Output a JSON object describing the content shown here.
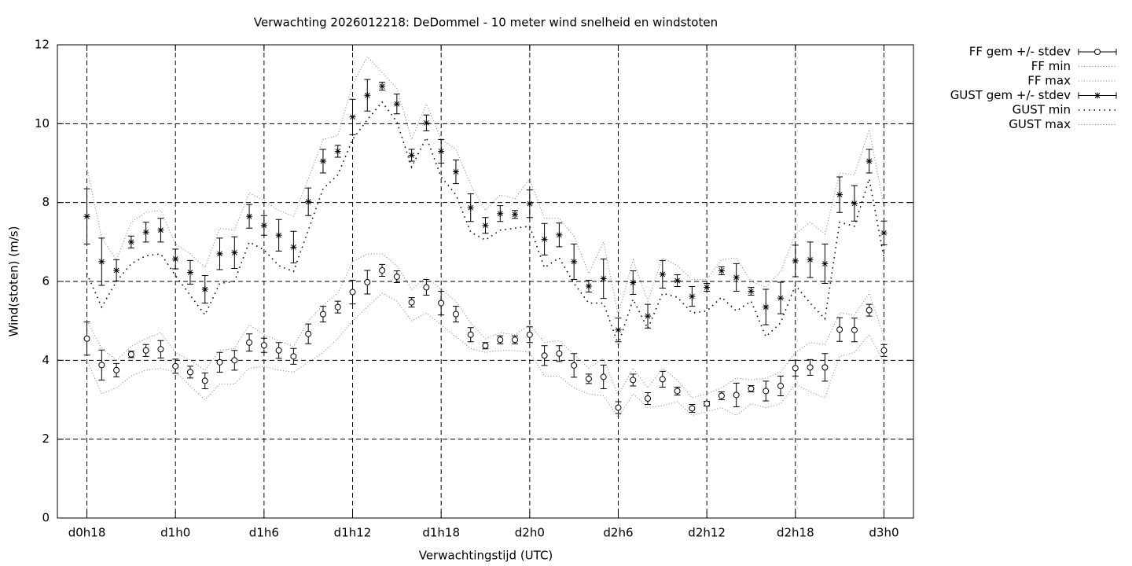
{
  "chart_data": {
    "type": "line",
    "title": "Verwachting 2026012218: DeDommel - 10 meter wind snelheid en windstoten",
    "xlabel": "Verwachtingstijd (UTC)",
    "ylabel": "Wind(stoten) (m/s)",
    "x": [
      18,
      19,
      20,
      21,
      22,
      23,
      24,
      25,
      26,
      27,
      28,
      29,
      30,
      31,
      32,
      33,
      34,
      35,
      36,
      37,
      38,
      39,
      40,
      41,
      42,
      43,
      44,
      45,
      46,
      47,
      48,
      49,
      50,
      51,
      52,
      53,
      54,
      55,
      56,
      57,
      58,
      59,
      60,
      61,
      62,
      63,
      64,
      65,
      66,
      67,
      68,
      69,
      70,
      71,
      72
    ],
    "xlim": [
      16,
      74
    ],
    "xticks": [
      {
        "value": 18,
        "label": "d0h18"
      },
      {
        "value": 24,
        "label": "d1h0"
      },
      {
        "value": 30,
        "label": "d1h6"
      },
      {
        "value": 36,
        "label": "d1h12"
      },
      {
        "value": 42,
        "label": "d1h18"
      },
      {
        "value": 48,
        "label": "d2h0"
      },
      {
        "value": 54,
        "label": "d2h6"
      },
      {
        "value": 60,
        "label": "d2h12"
      },
      {
        "value": 66,
        "label": "d2h18"
      },
      {
        "value": 72,
        "label": "d3h0"
      }
    ],
    "ylim": [
      0,
      12
    ],
    "yticks": [
      0,
      2,
      4,
      6,
      8,
      10,
      12
    ],
    "grid": true,
    "legend": "outside-top-right",
    "series": [
      {
        "name": "FF gem +/- stdev",
        "color": "#000000",
        "marker": "circle",
        "style": "errorbar",
        "values": [
          4.55,
          3.88,
          3.75,
          4.15,
          4.25,
          4.28,
          3.85,
          3.7,
          3.48,
          3.95,
          4.0,
          4.45,
          4.38,
          4.25,
          4.1,
          4.67,
          5.17,
          5.35,
          5.73,
          5.98,
          6.28,
          6.12,
          5.47,
          5.85,
          5.45,
          5.17,
          4.65,
          4.37,
          4.52,
          4.52,
          4.65,
          4.12,
          4.17,
          3.87,
          3.53,
          3.58,
          2.8,
          3.5,
          3.03,
          3.52,
          3.22,
          2.78,
          2.9,
          3.1,
          3.12,
          3.28,
          3.22,
          3.35,
          3.8,
          3.82,
          3.82,
          4.78,
          4.77,
          5.27,
          4.25
        ],
        "errors": [
          0.42,
          0.38,
          0.17,
          0.08,
          0.15,
          0.22,
          0.18,
          0.15,
          0.2,
          0.25,
          0.25,
          0.22,
          0.18,
          0.2,
          0.2,
          0.25,
          0.2,
          0.15,
          0.3,
          0.3,
          0.15,
          0.15,
          0.12,
          0.2,
          0.3,
          0.2,
          0.18,
          0.08,
          0.1,
          0.1,
          0.2,
          0.25,
          0.2,
          0.3,
          0.12,
          0.3,
          0.15,
          0.15,
          0.15,
          0.2,
          0.1,
          0.1,
          0.06,
          0.1,
          0.3,
          0.08,
          0.25,
          0.25,
          0.2,
          0.2,
          0.35,
          0.3,
          0.3,
          0.15,
          0.15
        ]
      },
      {
        "name": "FF min",
        "color": "#808080",
        "style": "dotted",
        "values": [
          4.0,
          3.15,
          3.3,
          3.6,
          3.75,
          3.8,
          3.7,
          3.35,
          3.0,
          3.4,
          3.4,
          3.8,
          3.85,
          3.75,
          3.7,
          3.95,
          4.2,
          4.55,
          5.0,
          5.35,
          5.7,
          5.5,
          5.0,
          5.2,
          4.9,
          4.6,
          4.3,
          4.2,
          4.25,
          4.25,
          4.2,
          3.6,
          3.6,
          3.3,
          3.15,
          3.1,
          2.55,
          3.15,
          2.8,
          2.85,
          2.95,
          2.6,
          2.7,
          2.8,
          2.6,
          2.9,
          2.8,
          2.9,
          3.4,
          3.2,
          3.05,
          4.1,
          4.2,
          4.65,
          3.95
        ]
      },
      {
        "name": "FF max",
        "color": "#808080",
        "style": "dotted",
        "values": [
          5.0,
          4.3,
          4.0,
          4.35,
          4.55,
          4.7,
          4.2,
          4.0,
          3.75,
          4.25,
          4.3,
          4.9,
          4.65,
          4.5,
          4.35,
          5.0,
          5.4,
          5.7,
          6.5,
          6.7,
          6.7,
          6.4,
          5.8,
          6.1,
          5.8,
          5.5,
          4.95,
          4.55,
          4.7,
          4.65,
          4.9,
          4.45,
          4.5,
          4.15,
          3.8,
          4.05,
          3.1,
          3.8,
          3.3,
          3.8,
          3.5,
          3.05,
          3.15,
          3.3,
          3.55,
          3.5,
          3.55,
          3.7,
          4.2,
          4.45,
          4.4,
          5.2,
          5.15,
          5.7,
          4.6
        ]
      },
      {
        "name": "GUST gem +/- stdev",
        "color": "#000000",
        "marker": "star",
        "style": "errorbar",
        "values": [
          7.65,
          6.5,
          6.28,
          7.0,
          7.25,
          7.3,
          6.57,
          6.23,
          5.8,
          6.7,
          6.73,
          7.65,
          7.42,
          7.17,
          6.87,
          8.02,
          9.05,
          9.3,
          10.17,
          10.72,
          10.95,
          10.5,
          9.2,
          10.02,
          9.3,
          8.78,
          7.87,
          7.42,
          7.72,
          7.7,
          7.97,
          7.07,
          7.18,
          6.5,
          5.88,
          6.07,
          4.77,
          5.97,
          5.12,
          6.18,
          6.02,
          5.62,
          5.85,
          6.27,
          6.1,
          5.75,
          5.35,
          5.58,
          6.52,
          6.55,
          6.45,
          8.2,
          7.98,
          9.05,
          7.23
        ],
        "errors": [
          0.7,
          0.6,
          0.27,
          0.15,
          0.25,
          0.3,
          0.25,
          0.3,
          0.35,
          0.4,
          0.4,
          0.3,
          0.25,
          0.4,
          0.4,
          0.35,
          0.3,
          0.15,
          0.45,
          0.4,
          0.1,
          0.25,
          0.15,
          0.2,
          0.3,
          0.3,
          0.35,
          0.2,
          0.2,
          0.1,
          0.35,
          0.4,
          0.3,
          0.45,
          0.15,
          0.5,
          0.3,
          0.3,
          0.3,
          0.35,
          0.15,
          0.25,
          0.1,
          0.1,
          0.35,
          0.1,
          0.45,
          0.4,
          0.4,
          0.45,
          0.5,
          0.45,
          0.45,
          0.3,
          0.3
        ]
      },
      {
        "name": "GUST min",
        "color": "#000000",
        "style": "sparse-dots",
        "values": [
          6.2,
          5.35,
          6.0,
          6.45,
          6.65,
          6.7,
          6.15,
          5.65,
          5.15,
          5.95,
          6.0,
          7.0,
          6.8,
          6.4,
          6.25,
          7.3,
          8.35,
          8.7,
          9.6,
          10.1,
          10.55,
          10.05,
          8.9,
          9.65,
          8.65,
          8.2,
          7.25,
          7.05,
          7.3,
          7.35,
          7.4,
          6.35,
          6.6,
          5.95,
          5.45,
          5.45,
          4.4,
          5.55,
          4.8,
          5.7,
          5.6,
          5.2,
          5.25,
          5.6,
          5.25,
          5.5,
          4.6,
          4.95,
          5.9,
          5.45,
          5.05,
          7.5,
          7.4,
          8.6,
          6.6
        ]
      },
      {
        "name": "GUST max",
        "color": "#808080",
        "style": "dotted",
        "values": [
          8.9,
          7.1,
          6.55,
          7.5,
          7.75,
          7.8,
          6.95,
          6.7,
          6.35,
          7.35,
          7.3,
          8.25,
          8.05,
          7.8,
          7.65,
          8.6,
          9.6,
          9.7,
          11.0,
          11.7,
          11.3,
          10.9,
          9.6,
          10.5,
          9.6,
          9.35,
          8.45,
          7.8,
          8.2,
          8.1,
          8.6,
          7.6,
          7.6,
          7.15,
          6.2,
          7.0,
          5.15,
          6.55,
          5.5,
          6.6,
          6.4,
          6.05,
          6.05,
          6.55,
          6.6,
          6.0,
          5.85,
          6.25,
          7.2,
          7.5,
          7.2,
          8.75,
          8.7,
          9.85,
          7.9
        ]
      }
    ]
  }
}
